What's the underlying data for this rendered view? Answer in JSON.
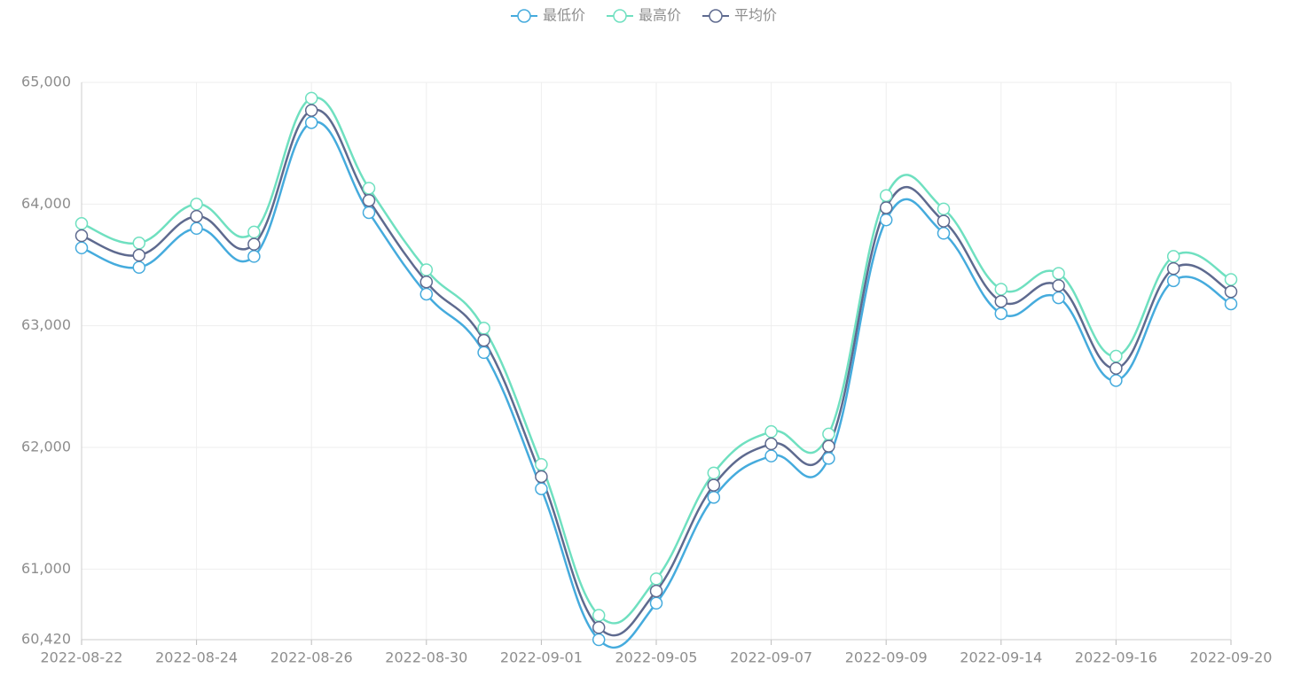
{
  "chart_data": {
    "type": "line",
    "smooth": true,
    "categories": [
      "2022-08-22",
      null,
      "2022-08-24",
      null,
      "2022-08-26",
      null,
      "2022-08-30",
      null,
      "2022-09-01",
      null,
      "2022-09-05",
      null,
      "2022-09-07",
      null,
      "2022-09-09",
      null,
      "2022-09-14",
      null,
      "2022-09-16",
      null,
      "2022-09-20"
    ],
    "series": [
      {
        "name": "最低价",
        "color": "#45abdd",
        "values": [
          63640,
          63480,
          63800,
          63570,
          64670,
          63930,
          63260,
          62780,
          61660,
          60420,
          60720,
          61590,
          61930,
          61910,
          63870,
          63760,
          63100,
          63230,
          62550,
          63370,
          63180
        ]
      },
      {
        "name": "最高价",
        "color": "#6fe0c0",
        "values": [
          63840,
          63680,
          64000,
          63770,
          64870,
          64130,
          63460,
          62980,
          61860,
          60620,
          60920,
          61790,
          62130,
          62110,
          64070,
          63960,
          63300,
          63430,
          62750,
          63570,
          63380
        ]
      },
      {
        "name": "平均价",
        "color": "#5e6a8f",
        "values": [
          63740,
          63580,
          63900,
          63670,
          64770,
          64030,
          63360,
          62880,
          61760,
          60520,
          60820,
          61690,
          62030,
          62010,
          63970,
          63860,
          63200,
          63330,
          62650,
          63470,
          63280
        ]
      }
    ],
    "ylim": [
      60420,
      65000
    ],
    "yticks": [
      {
        "value": 60420,
        "label": "60,420"
      },
      {
        "value": 61000,
        "label": "61,000"
      },
      {
        "value": 62000,
        "label": "62,000"
      },
      {
        "value": 63000,
        "label": "63,000"
      },
      {
        "value": 64000,
        "label": "64,000"
      },
      {
        "value": 65000,
        "label": "65,000"
      }
    ],
    "grid": true,
    "legend": "top"
  }
}
